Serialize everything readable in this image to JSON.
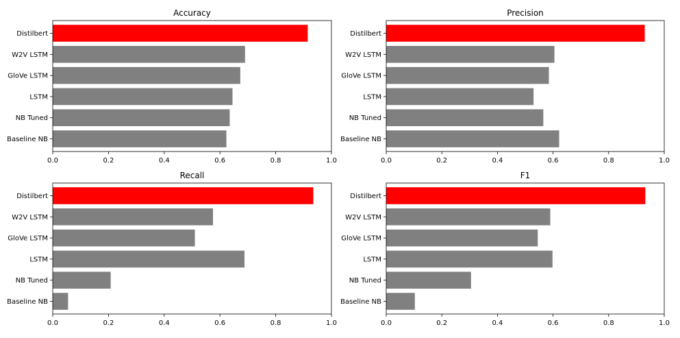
{
  "chart_data": [
    {
      "type": "bar",
      "orientation": "horizontal",
      "title": "Accuracy",
      "categories": [
        "Distilbert",
        "W2V LSTM",
        "GloVe LSTM",
        "LSTM",
        "NB Tuned",
        "Baseline NB"
      ],
      "values": [
        0.915,
        0.69,
        0.673,
        0.645,
        0.635,
        0.623
      ],
      "xlim": [
        0,
        1
      ],
      "xticks": [
        "0.0",
        "0.2",
        "0.4",
        "0.6",
        "0.8",
        "1.0"
      ],
      "highlight": "Distilbert",
      "highlight_color": "#ff0000",
      "bar_color": "#808080",
      "grid": false
    },
    {
      "type": "bar",
      "orientation": "horizontal",
      "title": "Precision",
      "categories": [
        "Distilbert",
        "W2V LSTM",
        "GloVe LSTM",
        "LSTM",
        "NB Tuned",
        "Baseline NB"
      ],
      "values": [
        0.93,
        0.605,
        0.585,
        0.53,
        0.565,
        0.622
      ],
      "xlim": [
        0,
        1
      ],
      "xticks": [
        "0.0",
        "0.2",
        "0.4",
        "0.6",
        "0.8",
        "1.0"
      ],
      "highlight": "Distilbert",
      "highlight_color": "#ff0000",
      "bar_color": "#808080",
      "grid": false
    },
    {
      "type": "bar",
      "orientation": "horizontal",
      "title": "Recall",
      "categories": [
        "Distilbert",
        "W2V LSTM",
        "GloVe LSTM",
        "LSTM",
        "NB Tuned",
        "Baseline NB"
      ],
      "values": [
        0.935,
        0.575,
        0.51,
        0.688,
        0.208,
        0.055
      ],
      "xlim": [
        0,
        1
      ],
      "xticks": [
        "0.0",
        "0.2",
        "0.4",
        "0.6",
        "0.8",
        "1.0"
      ],
      "highlight": "Distilbert",
      "highlight_color": "#ff0000",
      "bar_color": "#808080",
      "grid": false
    },
    {
      "type": "bar",
      "orientation": "horizontal",
      "title": "F1",
      "categories": [
        "Distilbert",
        "W2V LSTM",
        "GloVe LSTM",
        "LSTM",
        "NB Tuned",
        "Baseline NB"
      ],
      "values": [
        0.932,
        0.59,
        0.545,
        0.598,
        0.305,
        0.103
      ],
      "xlim": [
        0,
        1
      ],
      "xticks": [
        "0.0",
        "0.2",
        "0.4",
        "0.6",
        "0.8",
        "1.0"
      ],
      "highlight": "Distilbert",
      "highlight_color": "#ff0000",
      "bar_color": "#808080",
      "grid": false
    }
  ]
}
